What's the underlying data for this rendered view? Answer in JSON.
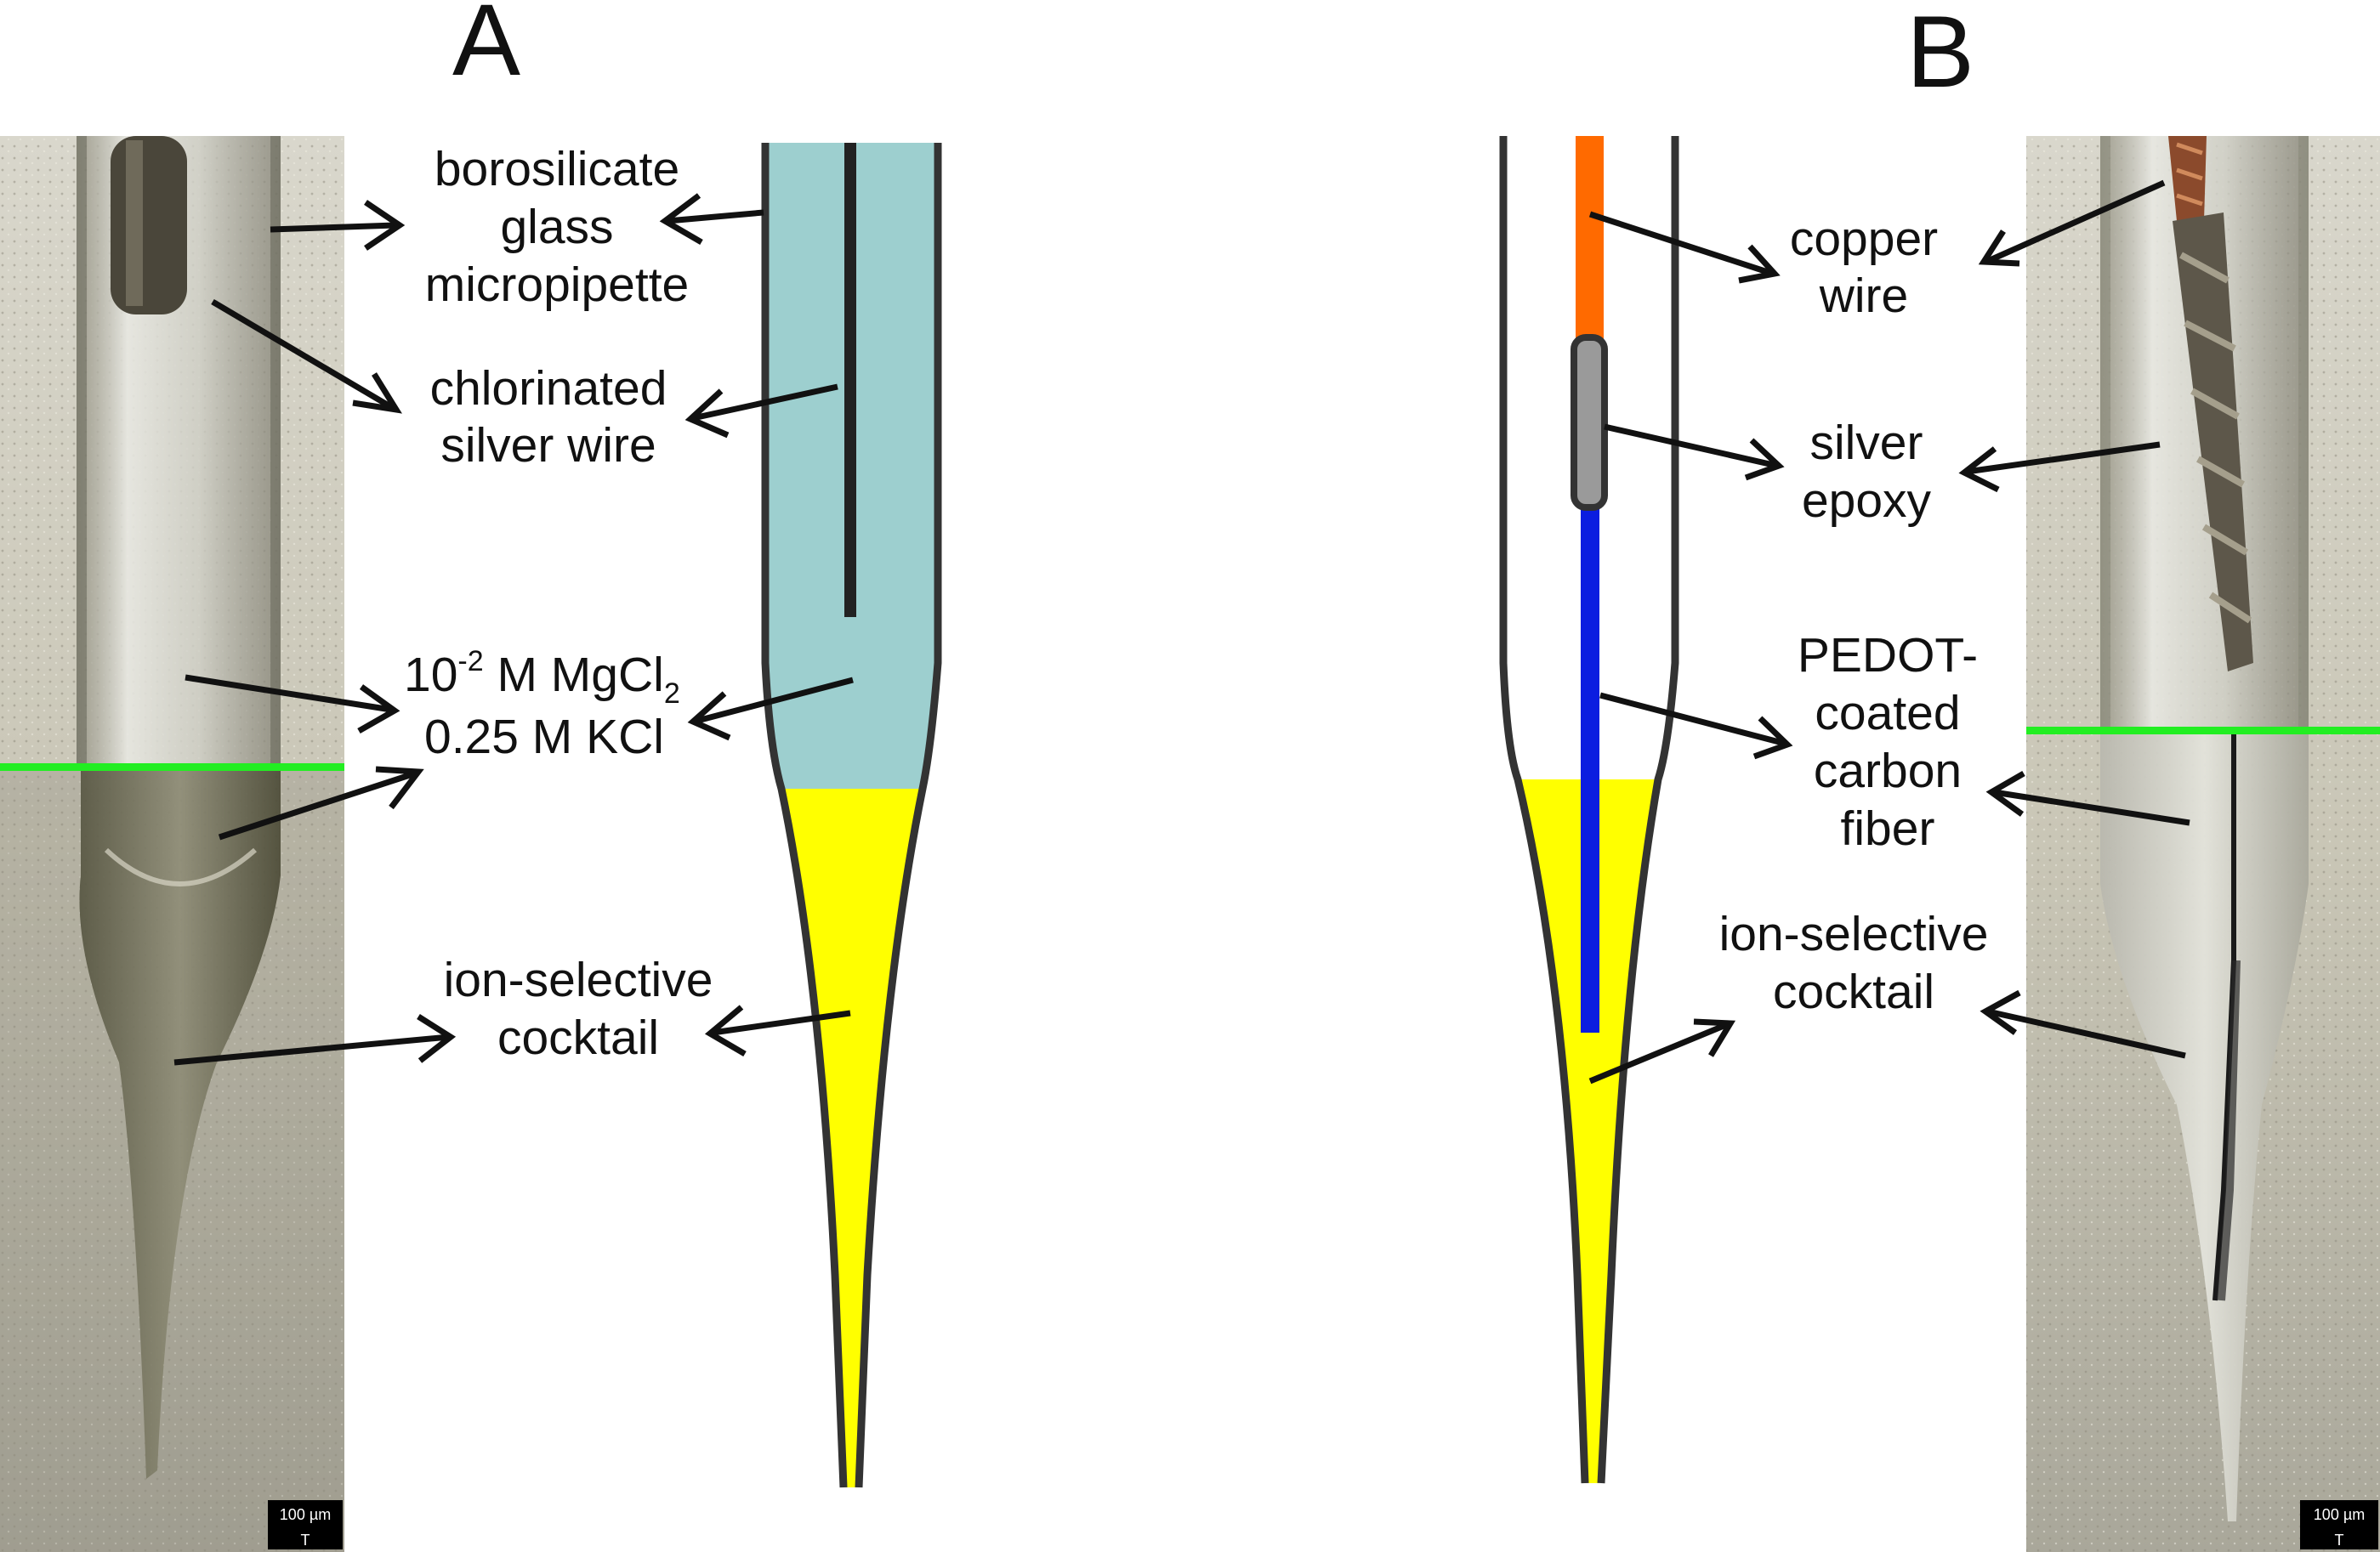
{
  "panels": {
    "a": {
      "letter": "A",
      "labels": {
        "glass": [
          "borosilicate",
          "glass",
          "micropipette"
        ],
        "silver_wire": [
          "chlorinated",
          "silver wire"
        ],
        "electrolyte_line1_prefix": "10",
        "electrolyte_line1_sup": "-2",
        "electrolyte_line1_mid": " M MgCl",
        "electrolyte_line1_sub": "2",
        "electrolyte_line2": "0.25 M KCl",
        "cocktail": [
          "ion-selective",
          "cocktail"
        ]
      },
      "scale_bar": "100 µm"
    },
    "b": {
      "letter": "B",
      "labels": {
        "copper": [
          "copper",
          "wire"
        ],
        "epoxy": [
          "silver",
          "epoxy"
        ],
        "fiber": [
          "PEDOT-",
          "coated",
          "carbon",
          "fiber"
        ],
        "cocktail": [
          "ion-selective",
          "cocktail"
        ]
      },
      "scale_bar": "100 µm"
    }
  },
  "colors": {
    "backfill_solution": "#9dcfcf",
    "ion_selective_cocktail": "#ffff00",
    "copper_wire": "#ff6a00",
    "carbon_fiber": "#0b1de0",
    "silver_epoxy": "#9a9a9a",
    "glass_outline": "#333333",
    "interface_line": "#22ee22"
  },
  "icons": {
    "photo_left": "pipette-photo-icon",
    "photo_right": "fiber-electrode-photo-icon"
  }
}
